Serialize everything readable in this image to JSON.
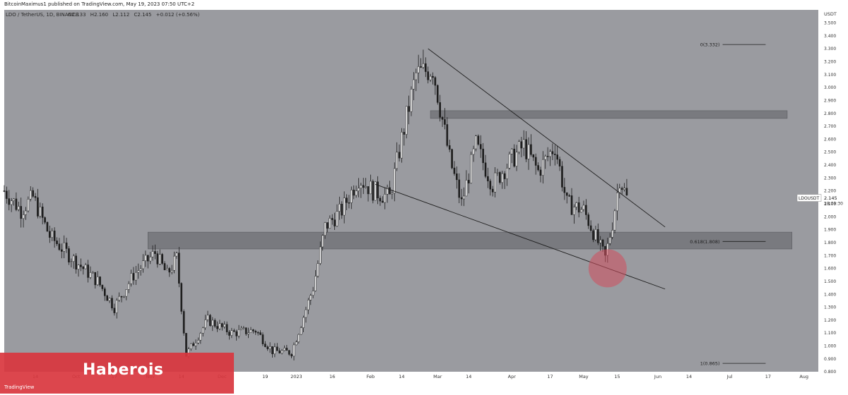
{
  "publisher_line": "BitcoinMaximus1 published on TradingView.com, May 19, 2023 07:50 UTC+2",
  "brand": {
    "name": "Haberois",
    "logo_text": "TradingView"
  },
  "colors": {
    "plot_bg": "#9a9ba0",
    "candle_up": "#ffffff",
    "candle_down": "#1c1c1c",
    "zone": "#6e6f74",
    "highlight_circle": "#d24c5c",
    "brand_red": "#d9363e"
  },
  "chart_data": {
    "type": "candlestick",
    "title": "LDO / TetherUS, 1D, BINANCE",
    "ohlc_header": {
      "o": "2.133",
      "h": "2.160",
      "l": "2.112",
      "c": "2.145",
      "change": "+0.012 (+0.56%)"
    },
    "y_axis": {
      "unit": "USDT",
      "min": 0.8,
      "max": 3.6,
      "ticks": [
        "3.500",
        "3.400",
        "3.300",
        "3.200",
        "3.100",
        "3.000",
        "2.900",
        "2.800",
        "2.700",
        "2.600",
        "2.500",
        "2.400",
        "2.300",
        "2.200",
        "2.100",
        "2.000",
        "1.900",
        "1.800",
        "1.700",
        "1.600",
        "1.500",
        "1.400",
        "1.300",
        "1.200",
        "1.100",
        "1.000",
        "0.900",
        "0.800"
      ]
    },
    "x_axis": {
      "start": "2022-09-01",
      "end": "2023-08-07",
      "tick_labels": [
        {
          "date": "2022-09-14",
          "label": "14"
        },
        {
          "date": "2022-10-01",
          "label": "Oct"
        },
        {
          "date": "2022-10-17",
          "label": "17"
        },
        {
          "date": "2022-11-01",
          "label": "Nov"
        },
        {
          "date": "2022-11-14",
          "label": "14"
        },
        {
          "date": "2022-12-01",
          "label": "Dec"
        },
        {
          "date": "2022-12-19",
          "label": "19"
        },
        {
          "date": "2023-01-01",
          "label": "2023"
        },
        {
          "date": "2023-01-16",
          "label": "16"
        },
        {
          "date": "2023-02-01",
          "label": "Feb"
        },
        {
          "date": "2023-02-14",
          "label": "14"
        },
        {
          "date": "2023-03-01",
          "label": "Mar"
        },
        {
          "date": "2023-03-14",
          "label": "14"
        },
        {
          "date": "2023-04-01",
          "label": "Apr"
        },
        {
          "date": "2023-04-17",
          "label": "17"
        },
        {
          "date": "2023-05-01",
          "label": "May"
        },
        {
          "date": "2023-05-15",
          "label": "15"
        },
        {
          "date": "2023-06-01",
          "label": "Jun"
        },
        {
          "date": "2023-06-14",
          "label": "14"
        },
        {
          "date": "2023-07-01",
          "label": "Jul"
        },
        {
          "date": "2023-07-17",
          "label": "17"
        },
        {
          "date": "2023-08-01",
          "label": "Aug"
        }
      ]
    },
    "price_anchors": [
      {
        "date": "2022-09-01",
        "price": 2.2
      },
      {
        "date": "2022-09-08",
        "price": 2.05
      },
      {
        "date": "2022-09-13",
        "price": 2.15
      },
      {
        "date": "2022-09-20",
        "price": 1.85
      },
      {
        "date": "2022-10-01",
        "price": 1.65
      },
      {
        "date": "2022-10-10",
        "price": 1.5
      },
      {
        "date": "2022-10-17",
        "price": 1.3
      },
      {
        "date": "2022-10-25",
        "price": 1.55
      },
      {
        "date": "2022-11-03",
        "price": 1.72
      },
      {
        "date": "2022-11-08",
        "price": 1.55
      },
      {
        "date": "2022-11-12",
        "price": 1.68
      },
      {
        "date": "2022-11-16",
        "price": 0.93
      },
      {
        "date": "2022-11-25",
        "price": 1.2
      },
      {
        "date": "2022-12-05",
        "price": 1.1
      },
      {
        "date": "2022-12-15",
        "price": 1.12
      },
      {
        "date": "2022-12-22",
        "price": 0.96
      },
      {
        "date": "2022-12-30",
        "price": 0.95
      },
      {
        "date": "2023-01-08",
        "price": 1.45
      },
      {
        "date": "2023-01-13",
        "price": 1.92
      },
      {
        "date": "2023-01-20",
        "price": 2.05
      },
      {
        "date": "2023-01-27",
        "price": 2.3
      },
      {
        "date": "2023-02-02",
        "price": 2.2
      },
      {
        "date": "2023-02-09",
        "price": 2.15
      },
      {
        "date": "2023-02-14",
        "price": 2.6
      },
      {
        "date": "2023-02-20",
        "price": 3.1
      },
      {
        "date": "2023-02-27",
        "price": 3.15
      },
      {
        "date": "2023-03-06",
        "price": 2.45
      },
      {
        "date": "2023-03-11",
        "price": 2.1
      },
      {
        "date": "2023-03-17",
        "price": 2.55
      },
      {
        "date": "2023-03-24",
        "price": 2.25
      },
      {
        "date": "2023-03-30",
        "price": 2.4
      },
      {
        "date": "2023-04-06",
        "price": 2.55
      },
      {
        "date": "2023-04-12",
        "price": 2.35
      },
      {
        "date": "2023-04-19",
        "price": 2.55
      },
      {
        "date": "2023-04-24",
        "price": 2.1
      },
      {
        "date": "2023-05-01",
        "price": 2.05
      },
      {
        "date": "2023-05-07",
        "price": 1.8
      },
      {
        "date": "2023-05-10",
        "price": 1.68
      },
      {
        "date": "2023-05-13",
        "price": 1.95
      },
      {
        "date": "2023-05-16",
        "price": 2.3
      },
      {
        "date": "2023-05-19",
        "price": 2.145
      }
    ],
    "last_price": {
      "label": "LDOUSDT",
      "value": "2.145",
      "countdown": "18:09:30"
    },
    "zones": [
      {
        "from": "2023-02-26",
        "to": "2023-07-25",
        "low": 2.76,
        "high": 2.82
      },
      {
        "from": "2022-10-31",
        "to": "2023-07-27",
        "low": 1.75,
        "high": 1.88
      }
    ],
    "trendlines": [
      {
        "name": "descending-resistance",
        "from": {
          "date": "2023-02-25",
          "price": 3.3
        },
        "to": {
          "date": "2023-06-04",
          "price": 1.92
        }
      },
      {
        "name": "descending-support",
        "from": {
          "date": "2023-02-03",
          "price": 2.25
        },
        "to": {
          "date": "2023-06-04",
          "price": 1.44
        }
      }
    ],
    "fib_levels": [
      {
        "label": "0(3.332)",
        "price": 3.332
      },
      {
        "label": "0.618(1.808)",
        "price": 1.808
      },
      {
        "label": "1(0.865)",
        "price": 0.865
      }
    ],
    "highlight": {
      "date": "2023-05-11",
      "price": 1.6
    }
  }
}
